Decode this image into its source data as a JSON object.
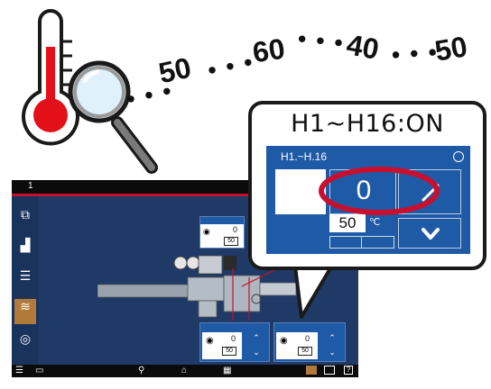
{
  "sequence": {
    "values": [
      "50",
      "60",
      "40",
      "50"
    ]
  },
  "hmi": {
    "screen_number": "1",
    "panels": {
      "top": {
        "value": "0",
        "setpoint": "50"
      },
      "bottom_left": {
        "value": "0",
        "setpoint": "50"
      },
      "bottom_right": {
        "value": "0",
        "setpoint": "50"
      }
    }
  },
  "callout": {
    "title": "H1~H16:ON",
    "panel_title": "H1.~H.16",
    "current_value": "0",
    "setpoint": "50",
    "unit": "℃"
  },
  "colors": {
    "panel_blue": "#1f5aa6",
    "screen_bg": "#1f3a67",
    "highlight_red": "#c8102e",
    "thermometer_red": "#e3101a"
  }
}
